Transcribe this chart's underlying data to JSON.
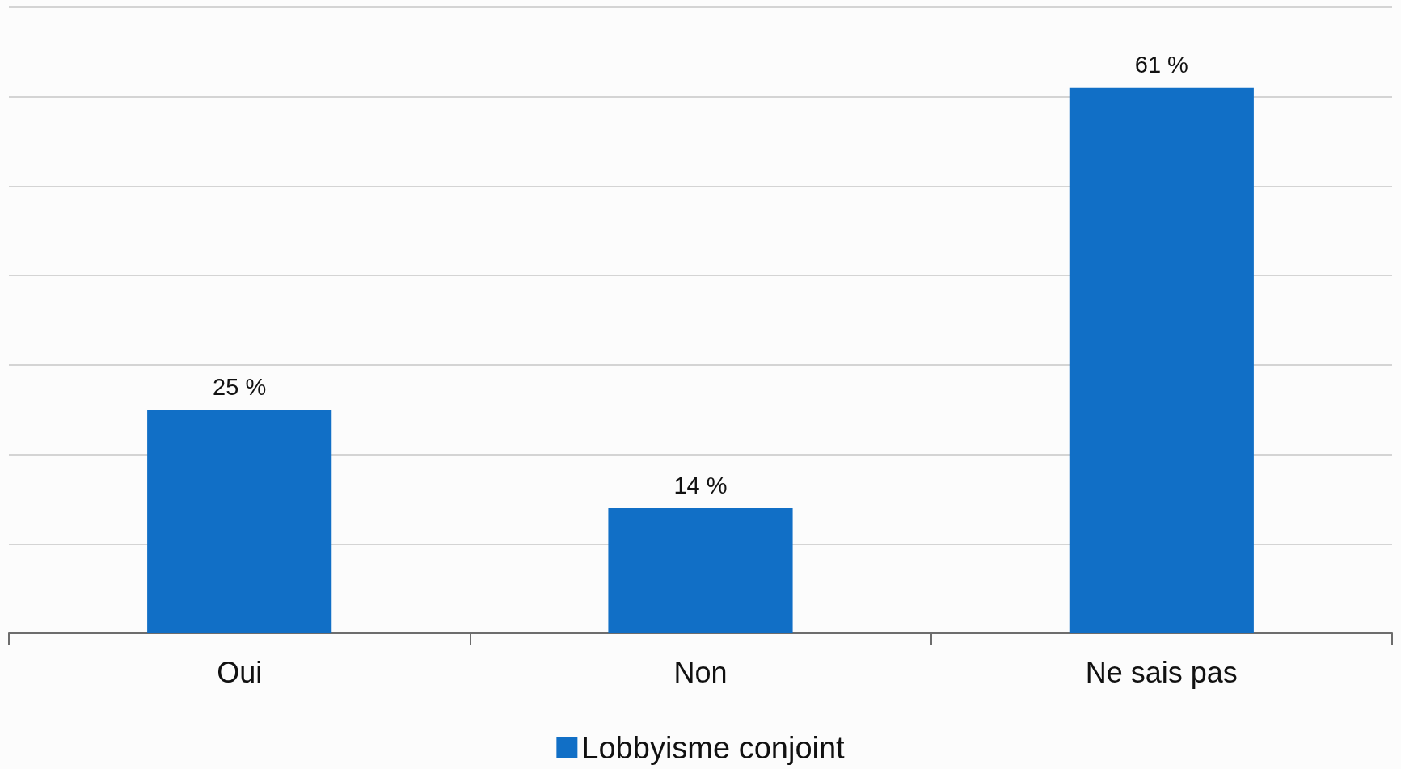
{
  "chart_data": {
    "type": "bar",
    "categories": [
      "Oui",
      "Non",
      "Ne sais pas"
    ],
    "series": [
      {
        "name": "Lobbyisme conjoint",
        "color": "#116fc6",
        "values": [
          25,
          14,
          61
        ],
        "value_labels": [
          "25 %",
          "14 %",
          "61 %"
        ]
      }
    ],
    "ylim": [
      0,
      70
    ],
    "yticks": [
      0,
      10,
      20,
      30,
      40,
      50,
      60,
      70
    ],
    "tick_labels": "x",
    "grid": "y",
    "legend": "bottom"
  }
}
